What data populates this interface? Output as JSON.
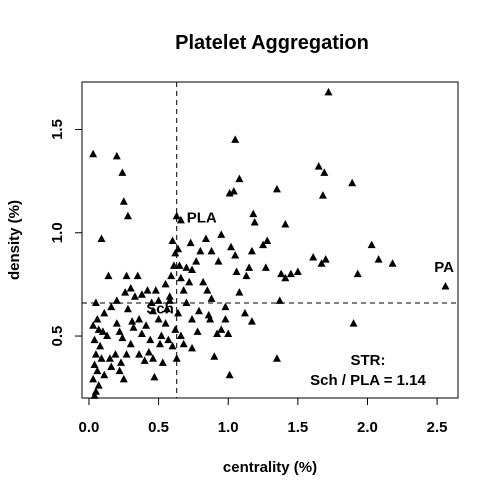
{
  "chart_data": {
    "type": "scatter",
    "title": "Platelet Aggregation",
    "xlabel": "centrality (%)",
    "ylabel": "density (%)",
    "xlim": [
      -0.05,
      2.65
    ],
    "ylim": [
      0.2,
      1.73
    ],
    "x_ticks": [
      0.0,
      0.5,
      1.0,
      1.5,
      2.0,
      2.5
    ],
    "x_tick_labels": [
      "0.0",
      "0.5",
      "1.0",
      "1.5",
      "2.0",
      "2.5"
    ],
    "y_ticks": [
      0.5,
      1.0,
      1.5
    ],
    "y_tick_labels": [
      "0.5",
      "1.0",
      "1.5"
    ],
    "grid": false,
    "marker": "filled-triangle",
    "marker_color": "#000000",
    "reference_lines": {
      "vertical_x": 0.63,
      "horizontal_y": 0.66,
      "style": "dashed"
    },
    "annotations": [
      {
        "text": "PLA",
        "x": 0.81,
        "y": 1.05
      },
      {
        "text": "Sch",
        "x": 0.51,
        "y": 0.61
      },
      {
        "text": "PA",
        "x": 2.55,
        "y": 0.81
      }
    ],
    "info_lines": [
      "STR:",
      "Sch / PLA = 1.14"
    ],
    "points": [
      [
        0.03,
        1.38
      ],
      [
        0.2,
        1.37
      ],
      [
        0.24,
        1.29
      ],
      [
        0.25,
        1.15
      ],
      [
        0.28,
        1.08
      ],
      [
        0.09,
        0.97
      ],
      [
        0.05,
        0.66
      ],
      [
        0.14,
        0.79
      ],
      [
        0.27,
        0.79
      ],
      [
        0.3,
        0.73
      ],
      [
        0.35,
        0.79
      ],
      [
        0.33,
        0.69
      ],
      [
        0.38,
        0.7
      ],
      [
        0.42,
        0.72
      ],
      [
        0.45,
        0.66
      ],
      [
        0.48,
        0.72
      ],
      [
        0.5,
        0.67
      ],
      [
        0.26,
        0.71
      ],
      [
        0.2,
        0.67
      ],
      [
        0.16,
        0.64
      ],
      [
        0.11,
        0.61
      ],
      [
        0.06,
        0.58
      ],
      [
        0.03,
        0.55
      ],
      [
        0.07,
        0.53
      ],
      [
        0.1,
        0.52
      ],
      [
        0.04,
        0.48
      ],
      [
        0.08,
        0.45
      ],
      [
        0.13,
        0.5
      ],
      [
        0.22,
        0.52
      ],
      [
        0.24,
        0.49
      ],
      [
        0.05,
        0.41
      ],
      [
        0.09,
        0.39
      ],
      [
        0.04,
        0.36
      ],
      [
        0.06,
        0.33
      ],
      [
        0.11,
        0.31
      ],
      [
        0.03,
        0.29
      ],
      [
        0.07,
        0.26
      ],
      [
        0.05,
        0.23
      ],
      [
        0.04,
        0.21
      ],
      [
        0.15,
        0.39
      ],
      [
        0.19,
        0.41
      ],
      [
        0.23,
        0.37
      ],
      [
        0.22,
        0.33
      ],
      [
        0.25,
        0.29
      ],
      [
        0.16,
        0.35
      ],
      [
        0.27,
        0.41
      ],
      [
        0.3,
        0.46
      ],
      [
        0.31,
        0.57
      ],
      [
        0.36,
        0.41
      ],
      [
        0.4,
        0.38
      ],
      [
        0.43,
        0.42
      ],
      [
        0.46,
        0.39
      ],
      [
        0.47,
        0.3
      ],
      [
        0.44,
        0.48
      ],
      [
        0.51,
        0.46
      ],
      [
        0.53,
        0.37
      ],
      [
        0.41,
        0.55
      ],
      [
        0.36,
        0.58
      ],
      [
        0.56,
        0.63
      ],
      [
        0.58,
        0.67
      ],
      [
        0.55,
        0.75
      ],
      [
        0.59,
        0.79
      ],
      [
        0.61,
        0.84
      ],
      [
        0.62,
        0.9
      ],
      [
        0.6,
        0.96
      ],
      [
        0.63,
        1.08
      ],
      [
        0.66,
        1.06
      ],
      [
        0.64,
        0.92
      ],
      [
        0.65,
        0.84
      ],
      [
        0.66,
        0.78
      ],
      [
        0.68,
        0.72
      ],
      [
        0.64,
        0.61
      ],
      [
        0.66,
        0.5
      ],
      [
        0.62,
        0.53
      ],
      [
        0.6,
        0.45
      ],
      [
        0.63,
        0.39
      ],
      [
        0.68,
        0.46
      ],
      [
        0.7,
        0.66
      ],
      [
        0.72,
        0.76
      ],
      [
        0.74,
        0.82
      ],
      [
        0.77,
        0.86
      ],
      [
        0.8,
        0.91
      ],
      [
        0.82,
        0.76
      ],
      [
        0.85,
        0.72
      ],
      [
        0.88,
        0.68
      ],
      [
        0.87,
        0.58
      ],
      [
        0.92,
        0.51
      ],
      [
        0.95,
        0.53
      ],
      [
        0.78,
        0.52
      ],
      [
        0.74,
        0.58
      ],
      [
        0.7,
        0.83
      ],
      [
        0.73,
        0.95
      ],
      [
        0.79,
        0.62
      ],
      [
        0.84,
        0.97
      ],
      [
        0.88,
        0.91
      ],
      [
        0.93,
        0.86
      ],
      [
        0.95,
        0.99
      ],
      [
        0.98,
        0.64
      ],
      [
        1.0,
        0.51
      ],
      [
        1.02,
        0.93
      ],
      [
        1.05,
        0.89
      ],
      [
        1.06,
        0.81
      ],
      [
        1.08,
        0.71
      ],
      [
        1.12,
        0.61
      ],
      [
        1.17,
        0.57
      ],
      [
        1.13,
        0.79
      ],
      [
        1.15,
        0.83
      ],
      [
        1.17,
        0.91
      ],
      [
        1.19,
        1.05
      ],
      [
        1.18,
        1.09
      ],
      [
        1.25,
        0.94
      ],
      [
        1.28,
        0.96
      ],
      [
        1.01,
        1.19
      ],
      [
        1.04,
        1.2
      ],
      [
        1.05,
        1.45
      ],
      [
        1.08,
        1.26
      ],
      [
        1.35,
        1.21
      ],
      [
        1.38,
        0.8
      ],
      [
        1.41,
        0.78
      ],
      [
        1.41,
        1.04
      ],
      [
        1.45,
        0.8
      ],
      [
        1.5,
        0.81
      ],
      [
        1.61,
        0.88
      ],
      [
        1.67,
        0.85
      ],
      [
        1.69,
        1.29
      ],
      [
        1.65,
        1.32
      ],
      [
        1.68,
        1.18
      ],
      [
        1.7,
        0.87
      ],
      [
        1.72,
        1.68
      ],
      [
        1.9,
        0.56
      ],
      [
        1.89,
        1.24
      ],
      [
        1.93,
        0.8
      ],
      [
        2.03,
        0.94
      ],
      [
        2.08,
        0.87
      ],
      [
        2.18,
        0.85
      ],
      [
        2.56,
        0.74
      ],
      [
        1.37,
        0.67
      ],
      [
        1.35,
        0.39
      ],
      [
        1.27,
        0.83
      ],
      [
        0.74,
        0.44
      ],
      [
        0.86,
        0.6
      ],
      [
        0.5,
        0.58
      ],
      [
        0.55,
        0.56
      ],
      [
        0.57,
        0.48
      ],
      [
        0.32,
        0.54
      ],
      [
        0.28,
        0.63
      ],
      [
        0.2,
        0.56
      ],
      [
        0.9,
        0.4
      ],
      [
        1.01,
        0.31
      ],
      [
        0.98,
        0.58
      ],
      [
        0.58,
        0.69
      ],
      [
        0.46,
        0.62
      ],
      [
        0.52,
        0.5
      ],
      [
        0.38,
        0.51
      ]
    ]
  }
}
